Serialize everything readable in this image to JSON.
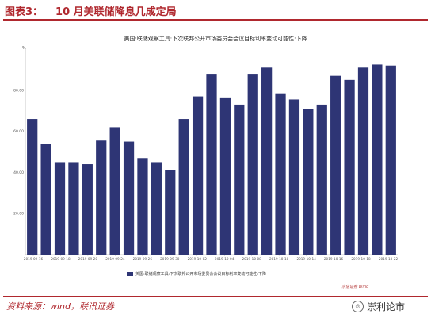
{
  "figure": {
    "label": "图表3：",
    "title": "10 月美联储降息几成定局",
    "source": "资料来源：wind，联讯证券",
    "stamp": "东信证券  Wind",
    "watermark": "崇利论市"
  },
  "chart_data": {
    "type": "bar",
    "title": "美国:联储观察工具:下次联邦公开市场委员会会议目标利率变动可能性:下降",
    "unit": "%",
    "ylim": [
      0,
      100
    ],
    "yticks": [
      "20.00",
      "40.00",
      "60.00",
      "80.00"
    ],
    "ytick_values": [
      20,
      40,
      60,
      80
    ],
    "grid": false,
    "legend_position": "bottom",
    "bar_color": "#2e3575",
    "series": [
      {
        "name": "美国:联储观察工具:下次联邦公开市场委员会会议目标利率变动可能性:下降",
        "values": [
          66,
          54,
          45,
          45,
          44,
          55.5,
          62,
          55,
          47,
          45,
          41,
          66,
          77,
          88,
          76.5,
          73,
          88,
          91,
          78.5,
          75.5,
          71,
          73,
          87,
          85,
          91,
          92.5,
          92
        ]
      }
    ],
    "xtick_labels": [
      "2019-09-16",
      "2019-09-18",
      "2019-09-20",
      "2019-09-24",
      "2019-09-26",
      "2019-09-30",
      "2019-10-02",
      "2019-10-04",
      "2019-10-08",
      "2019-10-10",
      "2019-10-14",
      "2019-10-16",
      "2019-10-18",
      "2019-10-22"
    ]
  }
}
